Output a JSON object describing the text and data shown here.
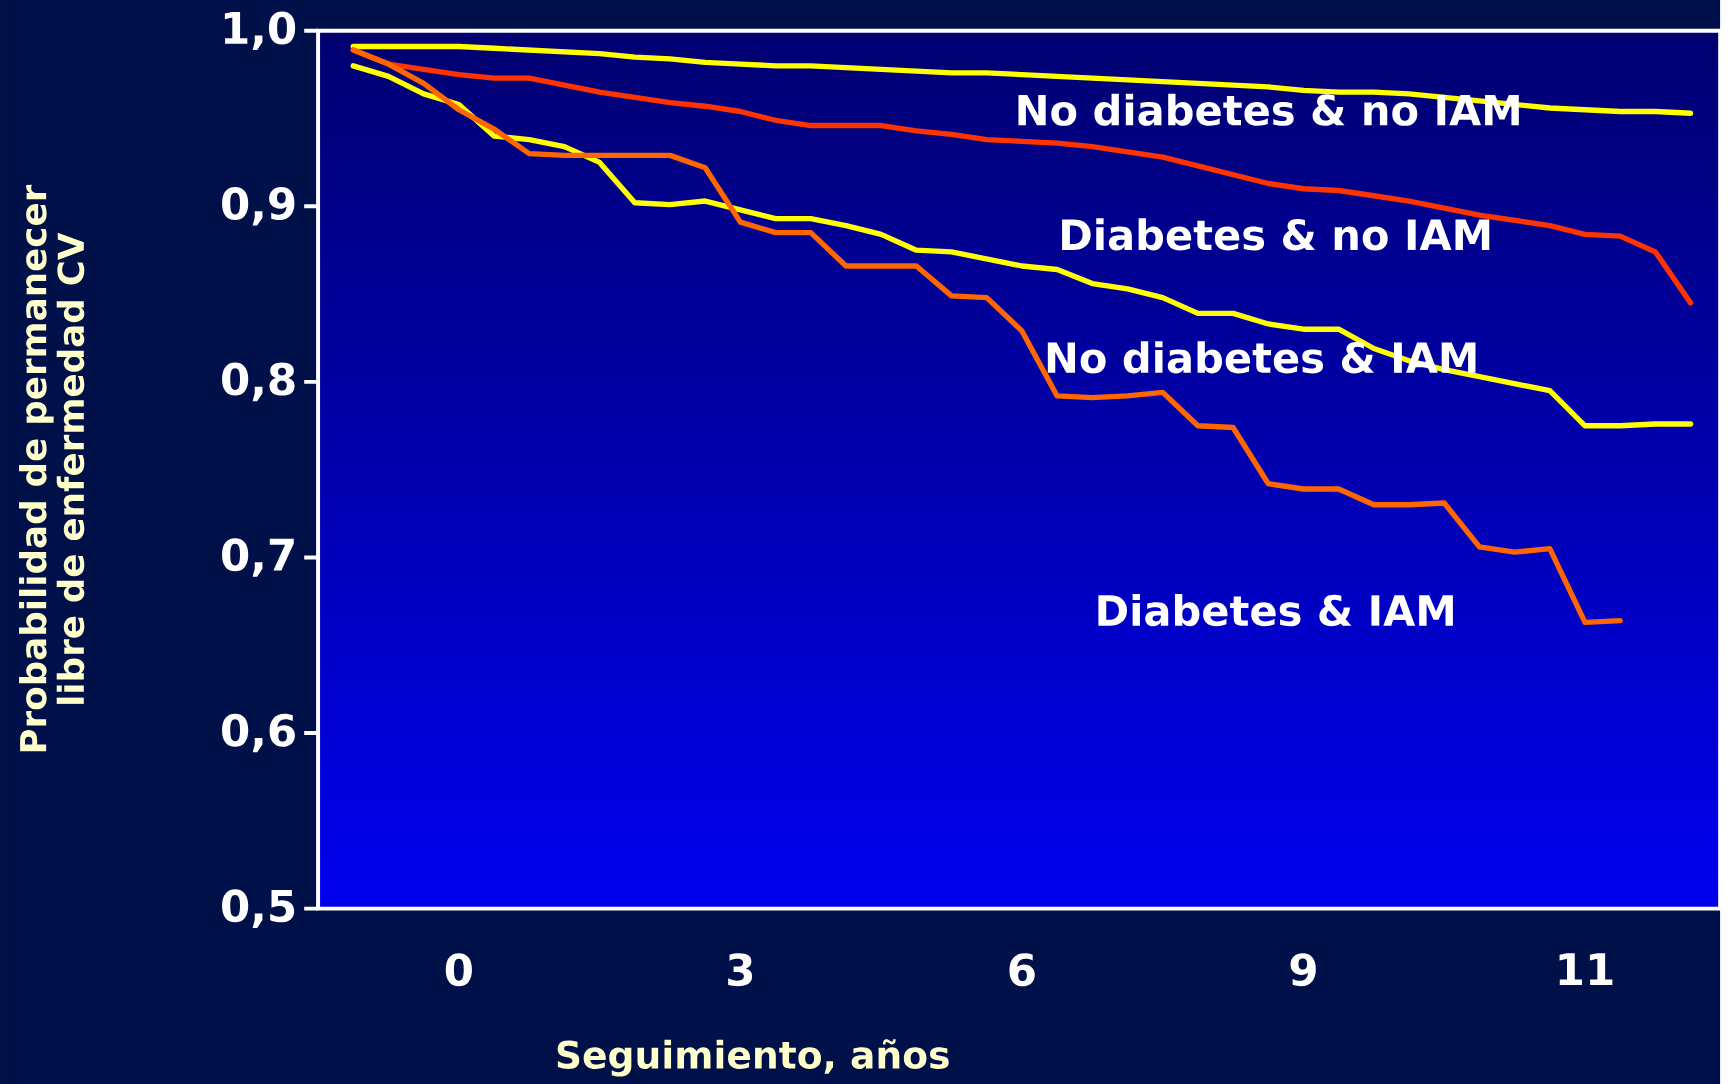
{
  "chart_data": {
    "type": "line",
    "xlabel": "Seguimiento, años",
    "ylabel": "Probabilidad de permanecer libre de enfermedad CV",
    "categories": [
      null,
      null,
      null,
      null,
      "0",
      null,
      null,
      null,
      null,
      null,
      null,
      null,
      "3",
      null,
      null,
      null,
      null,
      null,
      null,
      null,
      "6",
      null,
      null,
      null,
      null,
      null,
      null,
      null,
      "9",
      null,
      null,
      null,
      null,
      null,
      null,
      null,
      "11",
      null,
      null,
      null
    ],
    "ylim": [
      0.5,
      1.0
    ],
    "yticks": [
      {
        "value": 0.5,
        "label": "0,5"
      },
      {
        "value": 0.6,
        "label": "0,6"
      },
      {
        "value": 0.7,
        "label": "0,7"
      },
      {
        "value": 0.8,
        "label": "0,8"
      },
      {
        "value": 0.9,
        "label": "0,9"
      },
      {
        "value": 1.0,
        "label": "1,0"
      }
    ],
    "grid": false,
    "legend": false,
    "marker": "none",
    "line_style": "solid",
    "series": [
      {
        "name": "No diabetes & no IAM",
        "color": "#ffff00",
        "values": [
          null,
          0.991,
          0.991,
          0.991,
          0.991,
          0.99,
          0.989,
          0.988,
          0.987,
          0.985,
          0.984,
          0.982,
          0.981,
          0.98,
          0.98,
          0.979,
          0.978,
          0.977,
          0.976,
          0.976,
          0.975,
          0.974,
          0.973,
          0.972,
          0.971,
          0.97,
          0.969,
          0.968,
          0.966,
          0.965,
          0.965,
          0.964,
          0.962,
          0.96,
          0.958,
          0.956,
          0.955,
          0.954,
          0.954,
          0.953
        ]
      },
      {
        "name": "Diabetes & no IAM",
        "color": "#ff3300",
        "values": [
          null,
          0.989,
          0.981,
          0.978,
          0.975,
          0.973,
          0.973,
          0.969,
          0.965,
          0.962,
          0.959,
          0.957,
          0.954,
          0.949,
          0.946,
          0.946,
          0.946,
          0.943,
          0.941,
          0.938,
          0.937,
          0.936,
          0.934,
          0.931,
          0.928,
          0.923,
          0.918,
          0.913,
          0.91,
          0.909,
          0.906,
          0.903,
          0.899,
          0.895,
          0.892,
          0.889,
          0.884,
          0.883,
          0.874,
          0.845
        ]
      },
      {
        "name": "No diabetes & IAM",
        "color": "#ffff00",
        "values": [
          null,
          0.98,
          0.974,
          0.964,
          0.958,
          0.94,
          0.938,
          0.934,
          0.925,
          0.902,
          0.901,
          0.903,
          0.898,
          0.893,
          0.893,
          0.889,
          0.884,
          0.875,
          0.874,
          0.87,
          0.866,
          0.864,
          0.856,
          0.853,
          0.848,
          0.839,
          0.839,
          0.833,
          0.83,
          0.83,
          0.819,
          0.812,
          0.807,
          0.803,
          0.799,
          0.795,
          0.775,
          0.775,
          0.776,
          0.776
        ]
      },
      {
        "name": "Diabetes & IAM",
        "color": "#ff6600",
        "values": [
          null,
          0.989,
          0.981,
          0.97,
          0.955,
          0.944,
          0.93,
          0.929,
          0.929,
          0.929,
          0.929,
          0.922,
          0.891,
          0.885,
          0.885,
          0.866,
          0.866,
          0.866,
          0.849,
          0.848,
          0.829,
          0.792,
          0.791,
          0.792,
          0.794,
          0.775,
          0.774,
          0.742,
          0.739,
          0.739,
          0.73,
          0.73,
          0.731,
          0.706,
          0.703,
          0.705,
          0.663,
          0.664,
          null,
          null
        ]
      }
    ]
  }
}
